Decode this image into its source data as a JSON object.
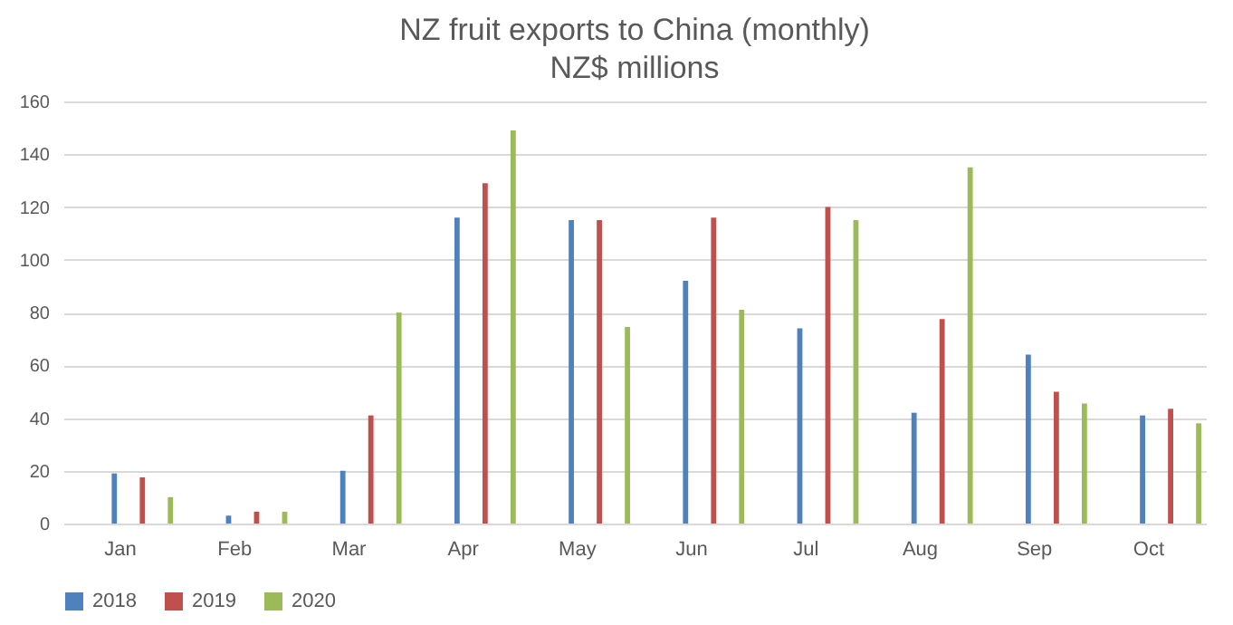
{
  "chart_data": {
    "type": "bar",
    "title": "NZ fruit exports to China (monthly)",
    "subtitle": "NZ$ millions",
    "categories": [
      "Jan",
      "Feb",
      "Mar",
      "Apr",
      "May",
      "Jun",
      "Jul",
      "Aug",
      "Sep",
      "Oct"
    ],
    "series": [
      {
        "name": "2018",
        "color": "#4f81bd",
        "values": [
          19,
          3,
          20,
          116,
          115,
          92,
          74,
          42,
          64,
          41
        ]
      },
      {
        "name": "2019",
        "color": "#c0504d",
        "values": [
          17.5,
          4.5,
          41,
          129,
          115,
          116,
          120,
          77.5,
          50,
          43.5
        ]
      },
      {
        "name": "2020",
        "color": "#9bbb59",
        "values": [
          10,
          4.5,
          80,
          149,
          74.5,
          81,
          115,
          135,
          45.5,
          38
        ]
      }
    ],
    "ylim": [
      0,
      160
    ],
    "yticks": [
      0,
      20,
      40,
      60,
      80,
      100,
      120,
      140,
      160
    ],
    "grid": "y",
    "legend": "bottom"
  }
}
